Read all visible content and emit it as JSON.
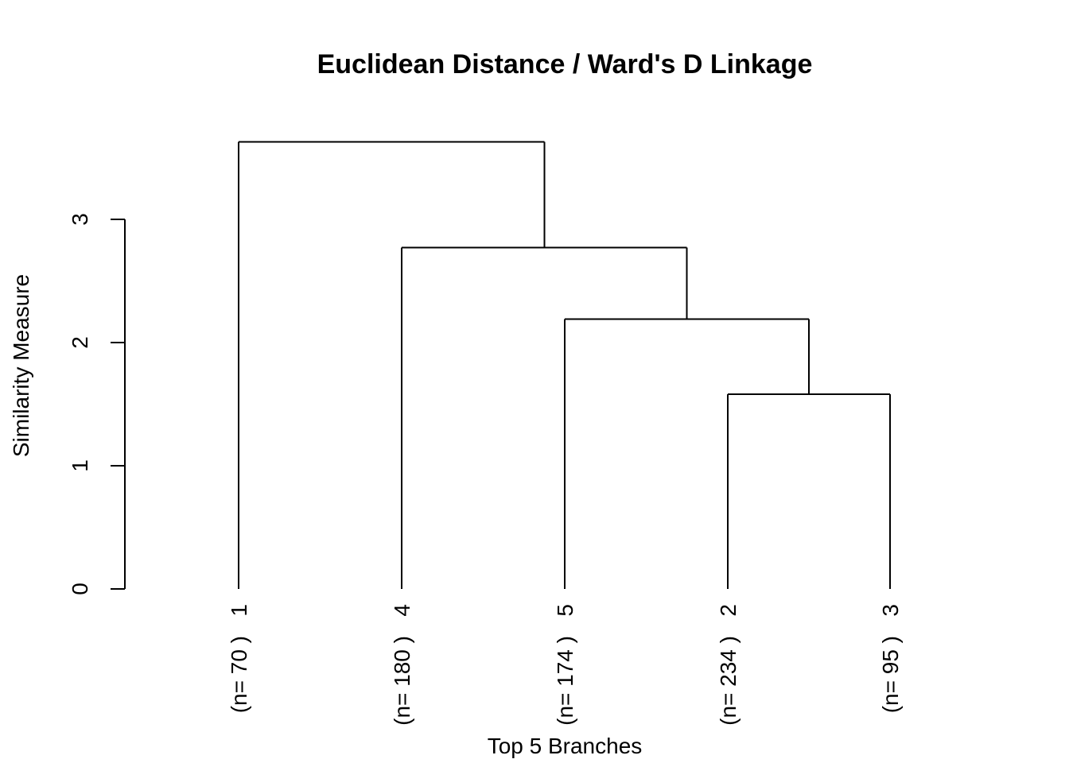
{
  "chart_data": {
    "type": "dendrogram",
    "title": "Euclidean Distance / Ward's D Linkage",
    "xlabel": "Top 5 Branches",
    "ylabel": "Similarity Measure",
    "yticks": [
      0,
      1,
      2,
      3
    ],
    "ylim": [
      0,
      3.7
    ],
    "leaves": [
      {
        "id": "1",
        "label": "1",
        "count_label": "(n= 70 )"
      },
      {
        "id": "4",
        "label": "4",
        "count_label": "(n= 180 )"
      },
      {
        "id": "5",
        "label": "5",
        "count_label": "(n= 174 )"
      },
      {
        "id": "2",
        "label": "2",
        "count_label": "(n= 234 )"
      },
      {
        "id": "3",
        "label": "3",
        "count_label": "(n= 95 )"
      }
    ],
    "merges": [
      {
        "left": "2",
        "right": "3",
        "height": 1.58
      },
      {
        "left": "5",
        "right": "2+3",
        "height": 2.19
      },
      {
        "left": "4",
        "right": "5+2+3",
        "height": 2.77
      },
      {
        "left": "1",
        "right": "4+5+2+3",
        "height": 3.63
      }
    ],
    "grid": false
  }
}
